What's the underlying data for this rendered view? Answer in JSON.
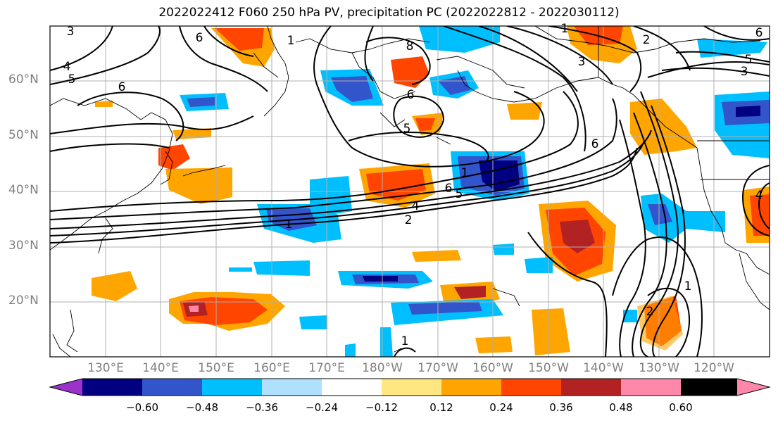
{
  "title": "2022022412 F060 250 hPa PV, precipitation PC (2022022812 - 2022030112)",
  "lat_labels": [
    "60°N",
    "50°N",
    "40°N",
    "30°N",
    "20°N"
  ],
  "lon_labels": [
    "130°E",
    "140°E",
    "150°E",
    "160°E",
    "170°E",
    "180°W",
    "170°W",
    "160°W",
    "150°W",
    "140°W",
    "130°W",
    "120°W"
  ],
  "colorbar": {
    "ticks": [
      "−0.60",
      "−0.48",
      "−0.36",
      "−0.24",
      "−0.12",
      "0.12",
      "0.24",
      "0.36",
      "0.48",
      "0.60"
    ],
    "colors": [
      "#9933cc",
      "#000080",
      "#3355cc",
      "#00bfff",
      "#b0e0ff",
      "#ffffff",
      "#ffe680",
      "#ffa500",
      "#ff4500",
      "#b22222",
      "#ff88aa"
    ]
  },
  "contour_labels": [
    "3",
    "4",
    "5",
    "6",
    "6",
    "1",
    "8",
    "6",
    "5",
    "1",
    "6",
    "5",
    "4",
    "2",
    "1",
    "6",
    "1",
    "2",
    "3",
    "6",
    "5",
    "3",
    "4",
    "1",
    "2",
    "1"
  ]
}
